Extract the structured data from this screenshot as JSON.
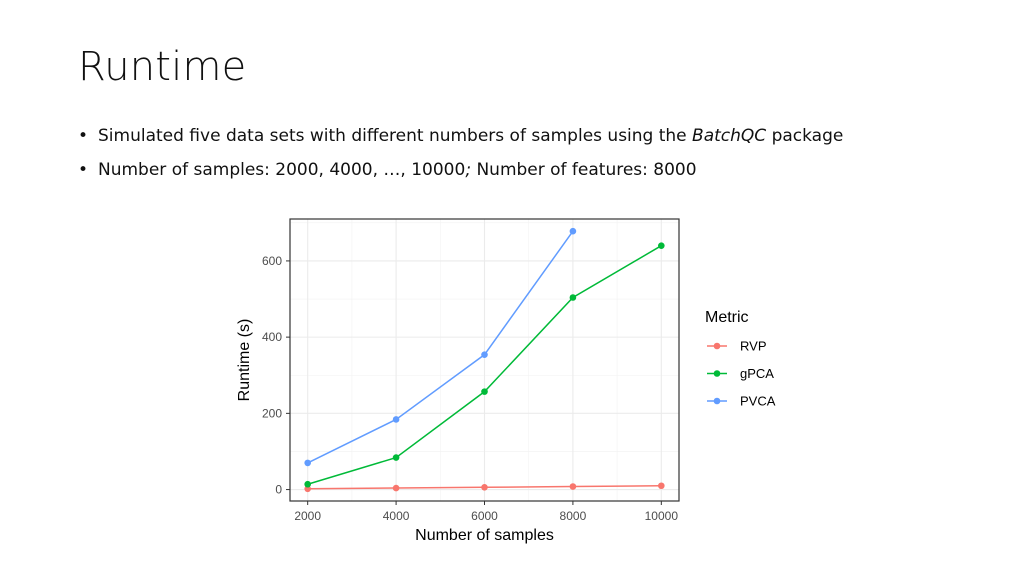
{
  "slide": {
    "title": "Runtime",
    "bullets": [
      {
        "prefix": "Simulated five data sets with different numbers of samples using the ",
        "italic": "BatchQC",
        "suffix": " package"
      },
      {
        "prefix": "Number of samples: 2000, 4000, …, 10000",
        "italic": ";",
        "suffix": " Number of features: 8000"
      }
    ]
  },
  "chart_data": {
    "type": "line",
    "xlabel": "Number of samples",
    "ylabel": "Runtime (s)",
    "x_ticks": [
      2000,
      4000,
      6000,
      8000,
      10000
    ],
    "y_ticks": [
      0,
      200,
      400,
      600
    ],
    "xlim": [
      1600,
      10400
    ],
    "ylim": [
      -30,
      710
    ],
    "grid": true,
    "legend": {
      "title": "Metric",
      "position": "right"
    },
    "series": [
      {
        "name": "RVP",
        "color": "#F8766D",
        "x": [
          2000,
          4000,
          6000,
          8000,
          10000
        ],
        "y": [
          2,
          4,
          6,
          8,
          10
        ]
      },
      {
        "name": "gPCA",
        "color": "#00BA38",
        "x": [
          2000,
          4000,
          6000,
          8000,
          10000
        ],
        "y": [
          14,
          84,
          257,
          504,
          640
        ]
      },
      {
        "name": "PVCA",
        "color": "#619CFF",
        "x": [
          2000,
          4000,
          6000,
          8000
        ],
        "y": [
          70,
          184,
          354,
          678
        ]
      }
    ]
  }
}
